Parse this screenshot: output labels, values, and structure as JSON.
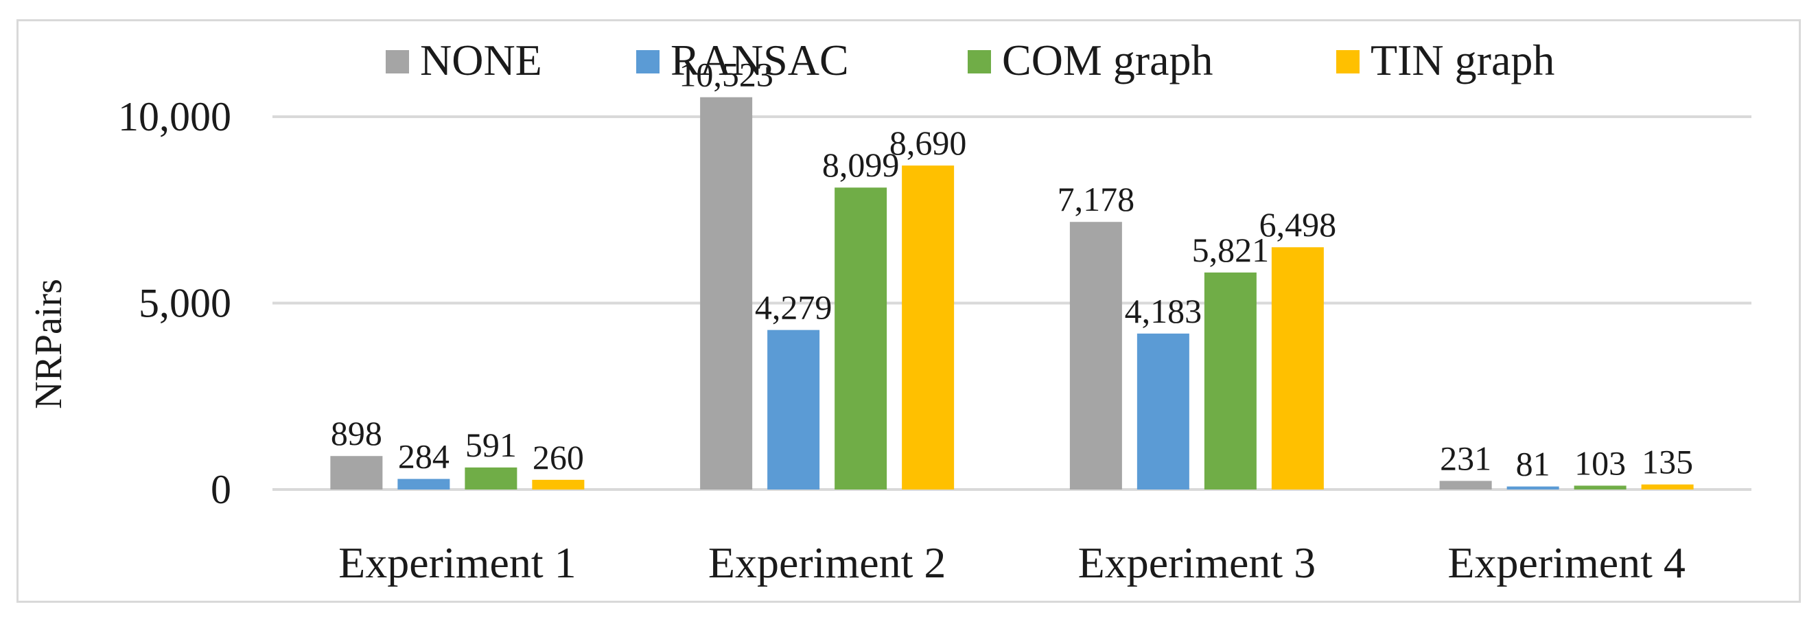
{
  "chart_data": {
    "type": "bar",
    "title": "",
    "xlabel": "",
    "ylabel": "NRPairs",
    "ylim": [
      0,
      12000
    ],
    "yticks": [
      0,
      5000,
      10000
    ],
    "ytick_labels": [
      "0",
      "5,000",
      "10,000"
    ],
    "grid": true,
    "legend_position": "top",
    "categories": [
      "Experiment 1",
      "Experiment 2",
      "Experiment 3",
      "Experiment 4"
    ],
    "series": [
      {
        "name": "NONE",
        "color": "#a5a5a5",
        "values": [
          898,
          10523,
          7178,
          231
        ],
        "labels": [
          "898",
          "10,523",
          "7,178",
          "231"
        ]
      },
      {
        "name": "RANSAC",
        "color": "#5b9bd5",
        "values": [
          284,
          4279,
          4183,
          81
        ],
        "labels": [
          "284",
          "4,279",
          "4,183",
          "81"
        ]
      },
      {
        "name": "COM graph",
        "color": "#70ad47",
        "values": [
          591,
          8099,
          5821,
          103
        ],
        "labels": [
          "591",
          "8,099",
          "5,821",
          "103"
        ]
      },
      {
        "name": "TIN graph",
        "color": "#ffc000",
        "values": [
          260,
          8690,
          6498,
          135
        ],
        "labels": [
          "260",
          "8,690",
          "6,498",
          "135"
        ]
      }
    ]
  }
}
